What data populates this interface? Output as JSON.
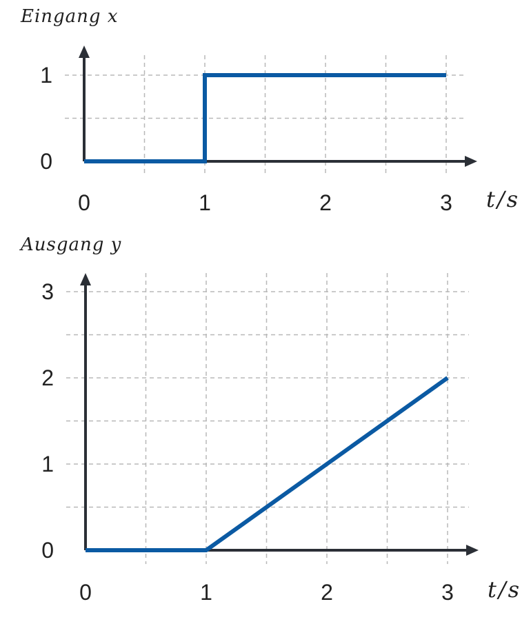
{
  "chart_data": [
    {
      "type": "line",
      "title": "Eingang x",
      "xlabel": "t/s",
      "ylabel": "",
      "xlim": [
        0,
        3
      ],
      "ylim": [
        0,
        1
      ],
      "xticks": [
        "0",
        "1",
        "2",
        "3"
      ],
      "yticks": [
        "0",
        "1"
      ],
      "grid": true,
      "series": [
        {
          "color": "#0b5aa3",
          "x": [
            0,
            1,
            1,
            3
          ],
          "y": [
            0,
            0,
            1,
            1
          ]
        }
      ]
    },
    {
      "type": "line",
      "title": "Ausgang y",
      "xlabel": "t/s",
      "ylabel": "",
      "xlim": [
        0,
        3
      ],
      "ylim": [
        0,
        3
      ],
      "xticks": [
        "0",
        "1",
        "2",
        "3"
      ],
      "yticks": [
        "0",
        "1",
        "2",
        "3"
      ],
      "grid": true,
      "series": [
        {
          "color": "#0b5aa3",
          "x": [
            0,
            1,
            3
          ],
          "y": [
            0,
            0,
            2
          ]
        }
      ]
    }
  ]
}
